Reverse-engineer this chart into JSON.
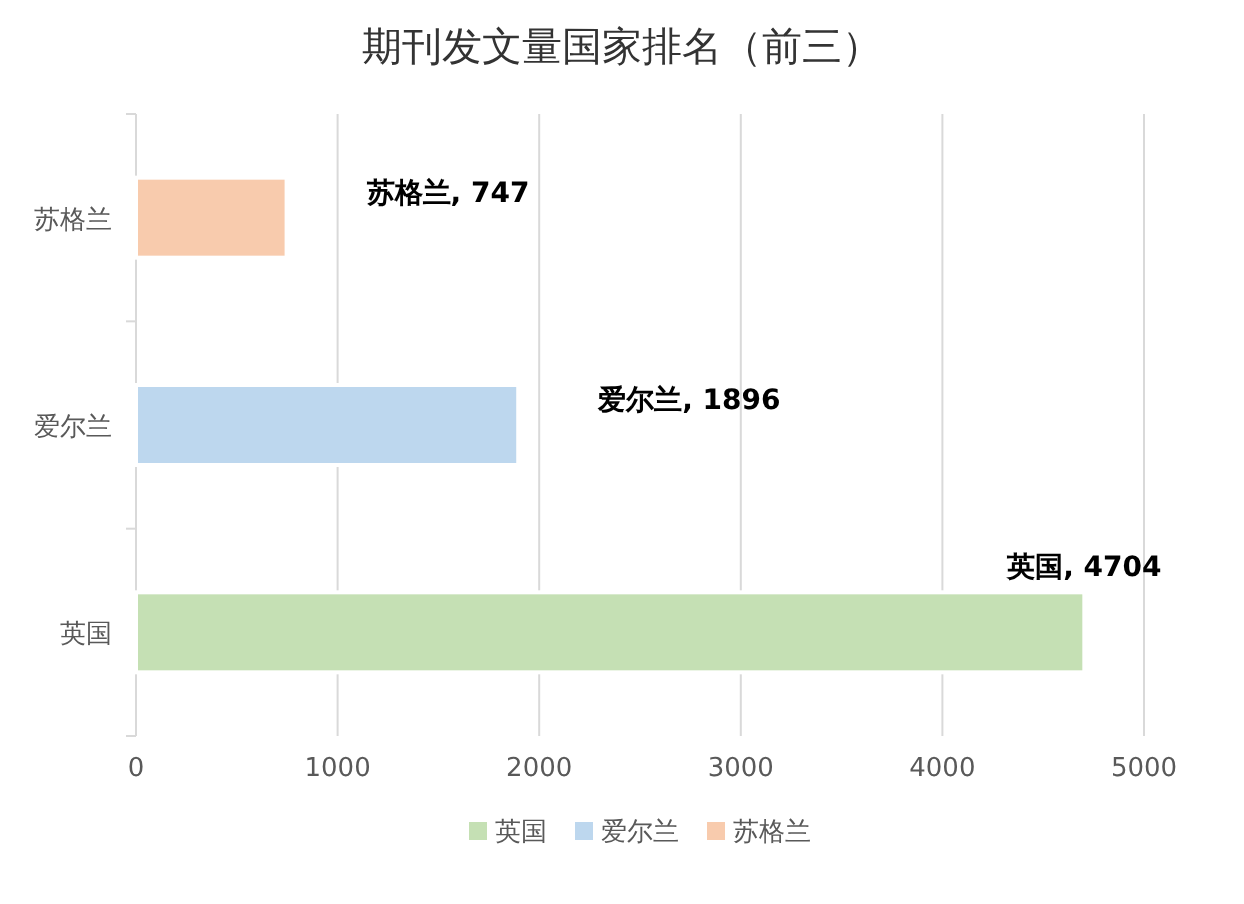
{
  "chart_data": {
    "type": "bar",
    "orientation": "horizontal",
    "title": "期刊发文量国家排名（前三）",
    "categories": [
      "苏格兰",
      "爱尔兰",
      "英国"
    ],
    "series": [
      {
        "name": "英国",
        "color": "#c5e0b4",
        "values": [
          null,
          null,
          4704
        ],
        "value_labels": [
          null,
          null,
          "英国, 4704"
        ]
      },
      {
        "name": "爱尔兰",
        "color": "#bdd7ee",
        "values": [
          null,
          1896,
          null
        ],
        "value_labels": [
          null,
          "爱尔兰, 1896",
          null
        ]
      },
      {
        "name": "苏格兰",
        "color": "#f8cbad",
        "values": [
          747,
          null,
          null
        ],
        "value_labels": [
          "苏格兰, 747",
          null,
          null
        ]
      }
    ],
    "stacked": true,
    "xlim": [
      0,
      5000
    ],
    "xticks": [
      0,
      1000,
      2000,
      3000,
      4000,
      5000
    ],
    "grid": "x",
    "legend": "bottom"
  }
}
